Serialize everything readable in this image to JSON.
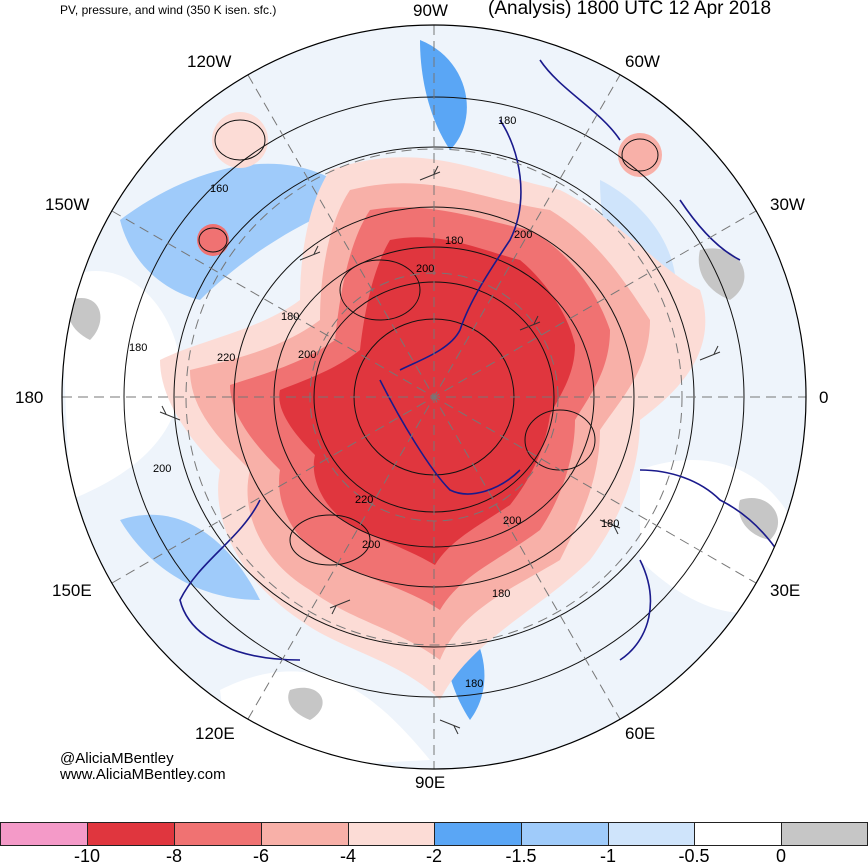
{
  "header": {
    "left": "PV, pressure, and wind (350 K isen. sfc.)",
    "right": "(Analysis) 1800 UTC 12 Apr 2018"
  },
  "longitude_labels": {
    "w90": "90W",
    "w60": "60W",
    "w30": "30W",
    "e0": "0",
    "e30": "30E",
    "e60": "60E",
    "e90": "90E",
    "e120": "120E",
    "e150": "150E",
    "d180": "180",
    "w150": "150W",
    "w120": "120W"
  },
  "contour_labels": {
    "c1": "180",
    "c2": "160",
    "c3": "180",
    "c4": "200",
    "c5": "200",
    "c6": "180",
    "c7": "180",
    "c8": "220",
    "c9": "200",
    "c10": "200",
    "c11": "220",
    "c12": "200",
    "c13": "200",
    "c14": "180",
    "c15": "180",
    "c16": "180"
  },
  "credits": {
    "handle": "@AliciaMBentley",
    "site": "www.AliciaMBentley.com"
  },
  "colorbar": {
    "colors": [
      "#f49ac8",
      "#e0363e",
      "#f07272",
      "#f8b0a8",
      "#fcdcd6",
      "#5aa6f5",
      "#9fcbfa",
      "#cfe4fb",
      "#ffffff",
      "#c6c6c6"
    ],
    "ticks": [
      "-10",
      "-8",
      "-6",
      "-4",
      "-2",
      "-1.5",
      "-1",
      "-0.5",
      "0"
    ]
  },
  "palette": {
    "disc_bg": "#eef4fb",
    "strong_red": "#e0363e",
    "mid_red": "#f07272",
    "light_red": "#f8b0a8",
    "pale_red": "#fcdcd6",
    "blue": "#5aa6f5",
    "light_blue": "#9fcbfa",
    "pale_blue": "#cfe4fb",
    "grey": "#c6c6c6",
    "coast": "#1a1a8c"
  }
}
